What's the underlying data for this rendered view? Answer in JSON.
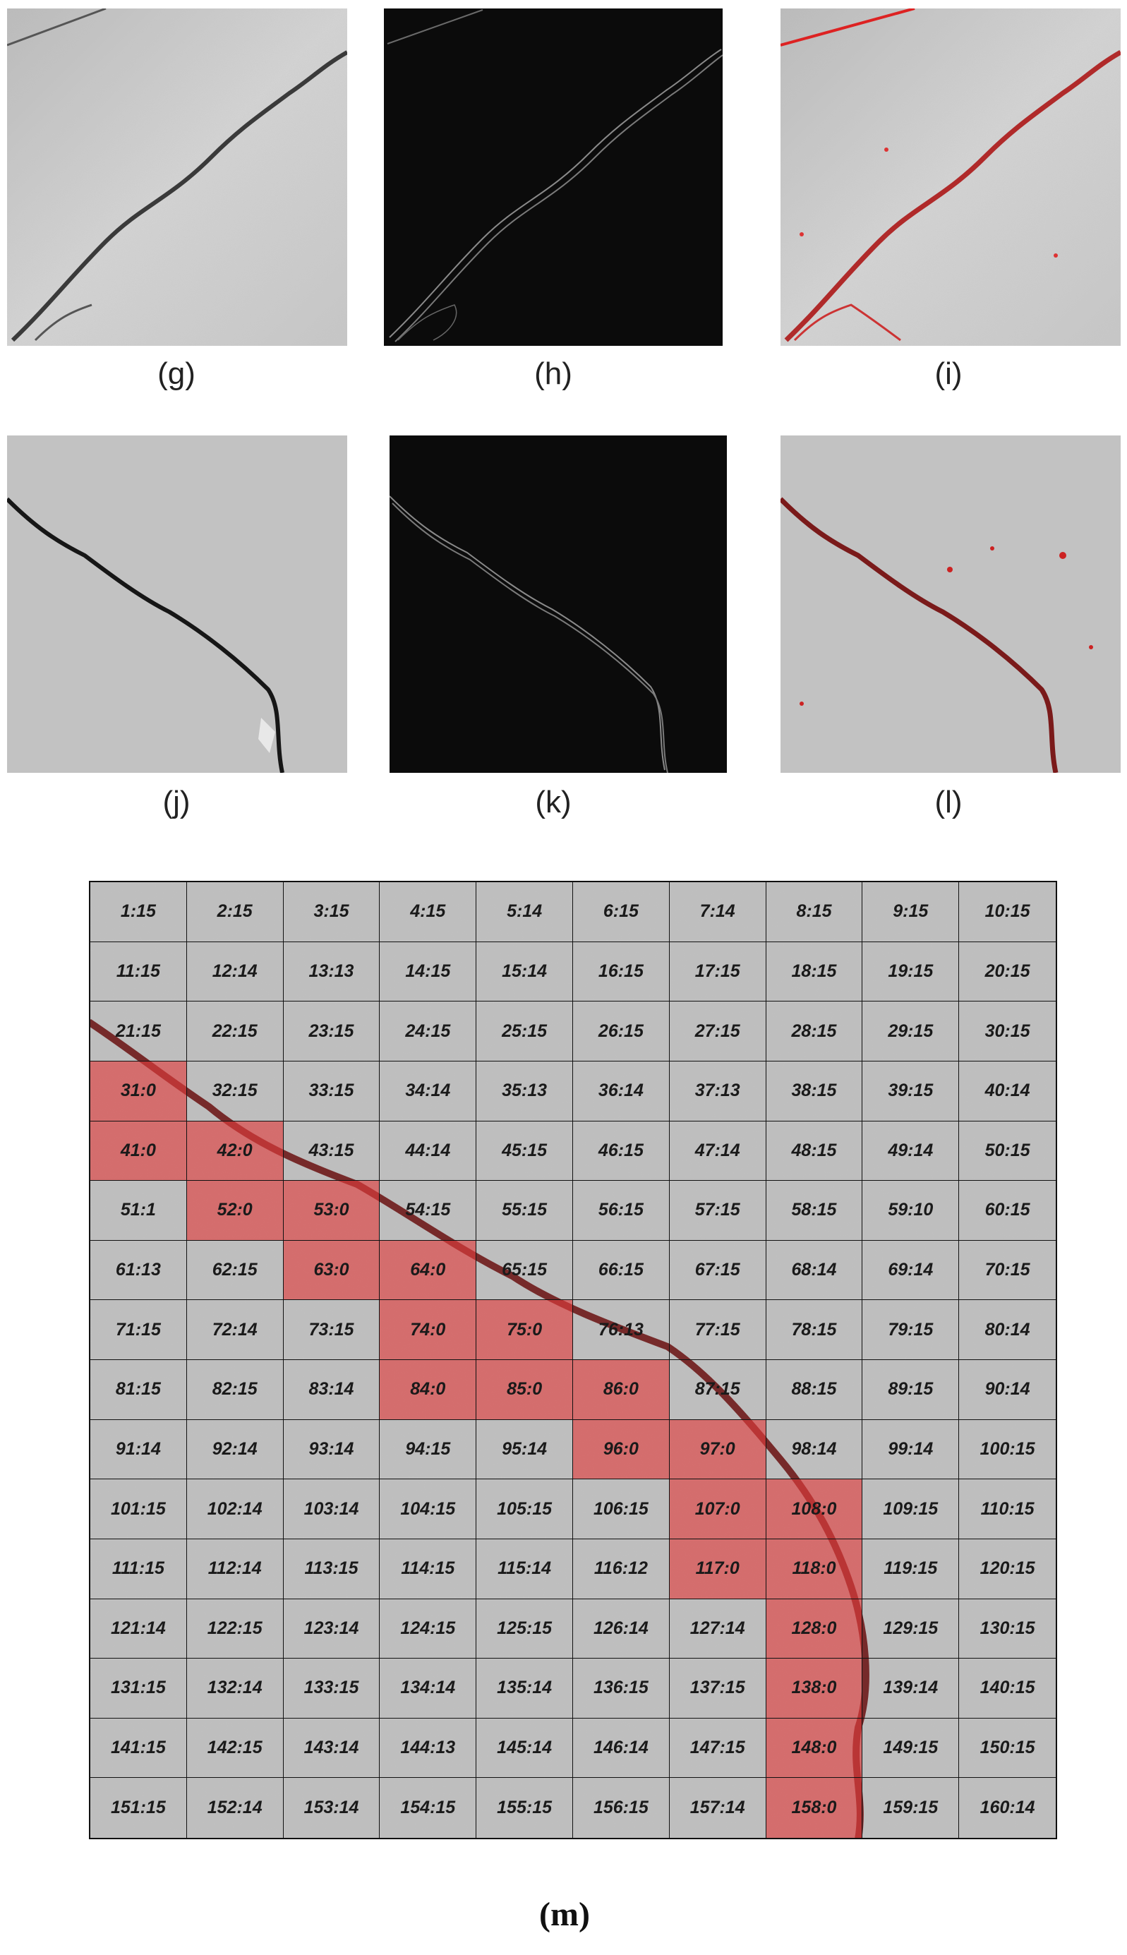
{
  "figure": {
    "panels": [
      {
        "id": "g",
        "caption": "(g)"
      },
      {
        "id": "h",
        "caption": "(h)"
      },
      {
        "id": "i",
        "caption": "(i)"
      },
      {
        "id": "j",
        "caption": "(j)"
      },
      {
        "id": "k",
        "caption": "(k)"
      },
      {
        "id": "l",
        "caption": "(l)"
      }
    ],
    "grid_caption": "(m)",
    "grid_cells": [
      "1:15",
      "2:15",
      "3:15",
      "4:15",
      "5:14",
      "6:15",
      "7:14",
      "8:15",
      "9:15",
      "10:15",
      "11:15",
      "12:14",
      "13:13",
      "14:15",
      "15:14",
      "16:15",
      "17:15",
      "18:15",
      "19:15",
      "20:15",
      "21:15",
      "22:15",
      "23:15",
      "24:15",
      "25:15",
      "26:15",
      "27:15",
      "28:15",
      "29:15",
      "30:15",
      "31:0",
      "32:15",
      "33:15",
      "34:14",
      "35:13",
      "36:14",
      "37:13",
      "38:15",
      "39:15",
      "40:14",
      "41:0",
      "42:0",
      "43:15",
      "44:14",
      "45:15",
      "46:15",
      "47:14",
      "48:15",
      "49:14",
      "50:15",
      "51:1",
      "52:0",
      "53:0",
      "54:15",
      "55:15",
      "56:15",
      "57:15",
      "58:15",
      "59:10",
      "60:15",
      "61:13",
      "62:15",
      "63:0",
      "64:0",
      "65:15",
      "66:15",
      "67:15",
      "68:14",
      "69:14",
      "70:15",
      "71:15",
      "72:14",
      "73:15",
      "74:0",
      "75:0",
      "76:13",
      "77:15",
      "78:15",
      "79:15",
      "80:14",
      "81:15",
      "82:15",
      "83:14",
      "84:0",
      "85:0",
      "86:0",
      "87:15",
      "88:15",
      "89:15",
      "90:14",
      "91:14",
      "92:14",
      "93:14",
      "94:15",
      "95:14",
      "96:0",
      "97:0",
      "98:14",
      "99:14",
      "100:15",
      "101:15",
      "102:14",
      "103:14",
      "104:15",
      "105:15",
      "106:15",
      "107:0",
      "108:0",
      "109:15",
      "110:15",
      "111:15",
      "112:14",
      "113:15",
      "114:15",
      "115:14",
      "116:12",
      "117:0",
      "118:0",
      "119:15",
      "120:15",
      "121:14",
      "122:15",
      "123:14",
      "124:15",
      "125:15",
      "126:14",
      "127:14",
      "128:0",
      "129:15",
      "130:15",
      "131:15",
      "132:14",
      "133:15",
      "134:14",
      "135:14",
      "136:15",
      "137:15",
      "138:0",
      "139:14",
      "140:15",
      "141:15",
      "142:15",
      "143:14",
      "144:13",
      "145:14",
      "146:14",
      "147:15",
      "148:0",
      "149:15",
      "150:15",
      "151:15",
      "152:14",
      "153:14",
      "154:15",
      "155:15",
      "156:15",
      "157:14",
      "158:0",
      "159:15",
      "160:14"
    ],
    "crack_cells": [
      31,
      41,
      42,
      52,
      53,
      63,
      64,
      74,
      75,
      84,
      85,
      86,
      96,
      97,
      107,
      108,
      117,
      118,
      128,
      138,
      148,
      158
    ],
    "colors": {
      "crack_overlay": "#e23c3c",
      "concrete": "#bdbdbd",
      "edge_background": "#0b0b0b"
    }
  }
}
